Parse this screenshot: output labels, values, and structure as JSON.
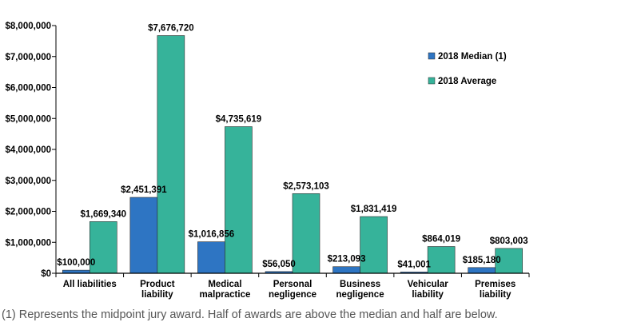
{
  "chart_data": {
    "type": "bar",
    "title": "",
    "xlabel": "",
    "ylabel": "",
    "ylim": [
      0,
      8000000
    ],
    "yticks": [
      0,
      1000000,
      2000000,
      3000000,
      4000000,
      5000000,
      6000000,
      7000000,
      8000000
    ],
    "ytick_labels": [
      "$0",
      "$1,000,000",
      "$2,000,000",
      "$3,000,000",
      "$4,000,000",
      "$5,000,000",
      "$6,000,000",
      "$7,000,000",
      "$8,000,000"
    ],
    "categories": [
      [
        "All liabilities"
      ],
      [
        "Product",
        "liability"
      ],
      [
        "Medical",
        "malpractice"
      ],
      [
        "Personal",
        "negligence"
      ],
      [
        "Business",
        "negligence"
      ],
      [
        "Vehicular",
        "liability"
      ],
      [
        "Premises",
        "liability"
      ]
    ],
    "series": [
      {
        "name": "2018 Median (1)",
        "color": "#2e75c3",
        "values": [
          100000,
          2451391,
          1016856,
          56050,
          213093,
          41001,
          185180
        ],
        "labels": [
          "$100,000",
          "$2,451,391",
          "$1,016,856",
          "$56,050",
          "$213,093",
          "$41,001",
          "$185,180"
        ]
      },
      {
        "name": "2018 Average",
        "color": "#36b39a",
        "values": [
          1669340,
          7676720,
          4735619,
          2573103,
          1831419,
          864019,
          803003
        ],
        "labels": [
          "$1,669,340",
          "$7,676,720",
          "$4,735,619",
          "$2,573,103",
          "$1,831,419",
          "$864,019",
          "$803,003"
        ]
      }
    ],
    "legend_position": "right"
  },
  "footnote": "(1) Represents the midpoint jury award. Half of awards are above the median and half are below."
}
